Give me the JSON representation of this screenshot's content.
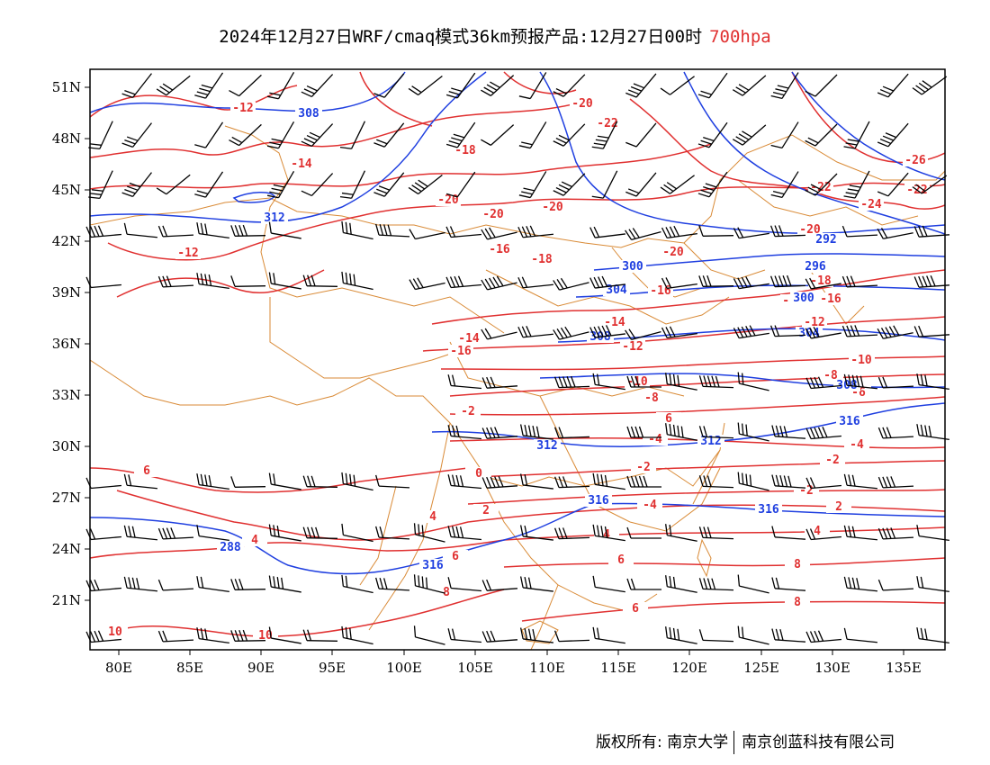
{
  "title": {
    "main": "2024年12月27日WRF/cmaq模式36km预报产品:12月27日00时",
    "level": "700hpa",
    "level_color": "#e03030"
  },
  "footer": {
    "copyright_label": "版权所有:",
    "org1": "南京大学",
    "org2": "南京创蓝科技有限公司"
  },
  "map": {
    "lon_ticks": [
      "80E",
      "85E",
      "90E",
      "95E",
      "100E",
      "105E",
      "110E",
      "115E",
      "120E",
      "125E",
      "130E",
      "135E"
    ],
    "lat_ticks": [
      "51N",
      "48N",
      "45N",
      "42N",
      "39N",
      "36N",
      "33N",
      "30N",
      "27N",
      "24N",
      "21N"
    ],
    "colors": {
      "temperature": "#e03030",
      "geopotential": "#1f3fe0",
      "boundary": "#d98a36",
      "wind": "#000000"
    },
    "temperature_labels": [
      "-12",
      "-14",
      "-18",
      "-20",
      "-20",
      "-20",
      "-20",
      "-22",
      "-12",
      "-16",
      "-18",
      "-20",
      "-16",
      "-14",
      "-14",
      "-16",
      "-12",
      "-10",
      "-8",
      "-6",
      "-4",
      "-2",
      "-2",
      "0",
      "2",
      "4",
      "-4",
      "-2",
      "2",
      "4",
      "6",
      "-22",
      "-24",
      "-22",
      "-26",
      "-20",
      "-18",
      "-16",
      "-12",
      "-10",
      "-8",
      "-6",
      "-4",
      "-2",
      "0",
      "2",
      "4",
      "6",
      "8",
      "8",
      "6",
      "4",
      "6",
      "10",
      "10",
      "8",
      "6",
      "-12",
      "-10"
    ],
    "height_labels": [
      "308",
      "312",
      "300",
      "304",
      "308",
      "312",
      "312",
      "316",
      "316",
      "316",
      "288",
      "292",
      "296",
      "300",
      "304",
      "308",
      "316"
    ]
  }
}
